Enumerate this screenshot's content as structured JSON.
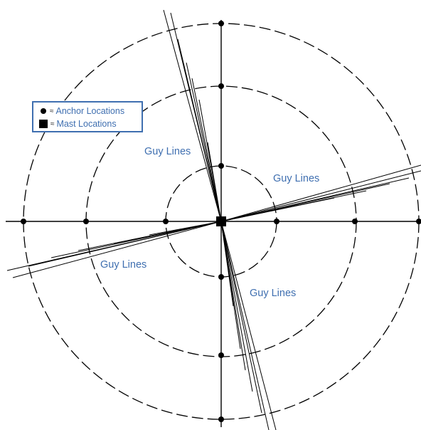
{
  "legend": {
    "anchor_label": "Anchor Locations",
    "mast_label": "Mast Locations",
    "approx_symbol": "≈"
  },
  "guy_lines": {
    "upper_left": "Guy Lines",
    "right": "Guy Lines",
    "lower_left": "Guy Lines",
    "lower_right": "Guy Lines"
  },
  "colors": {
    "line": "#000000",
    "label": "#3f6fb0",
    "legend_border": "#3f6fb0"
  }
}
